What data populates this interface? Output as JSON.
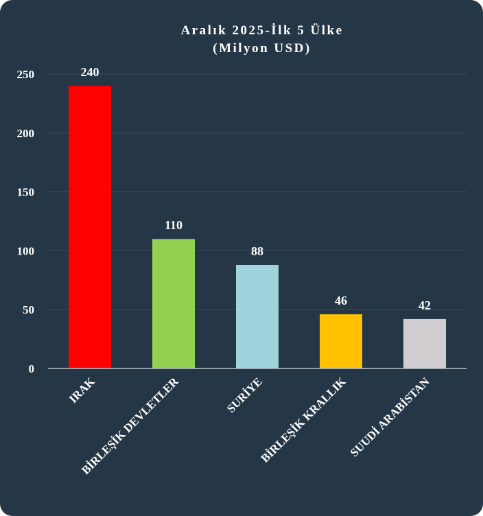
{
  "chart_data": {
    "type": "bar",
    "title": [
      "Aralık 2025-İlk 5 Ülke",
      "(Milyon USD)"
    ],
    "xlabel": "",
    "ylabel": "",
    "categories": [
      "IRAK",
      "BİRLEŞİK DEVLETLER",
      "SURİYE",
      "BİRLEŞİK KRALLIK",
      "SUUDİ ARABİSTAN"
    ],
    "values": [
      240,
      110,
      88,
      46,
      42
    ],
    "colors": [
      "#ff0000",
      "#92d050",
      "#9fd4dc",
      "#ffc000",
      "#d0ced0"
    ],
    "ylim": [
      0,
      250
    ],
    "yticks": [
      0,
      50,
      100,
      150,
      200,
      250
    ],
    "grid": true,
    "data_labels": true
  }
}
